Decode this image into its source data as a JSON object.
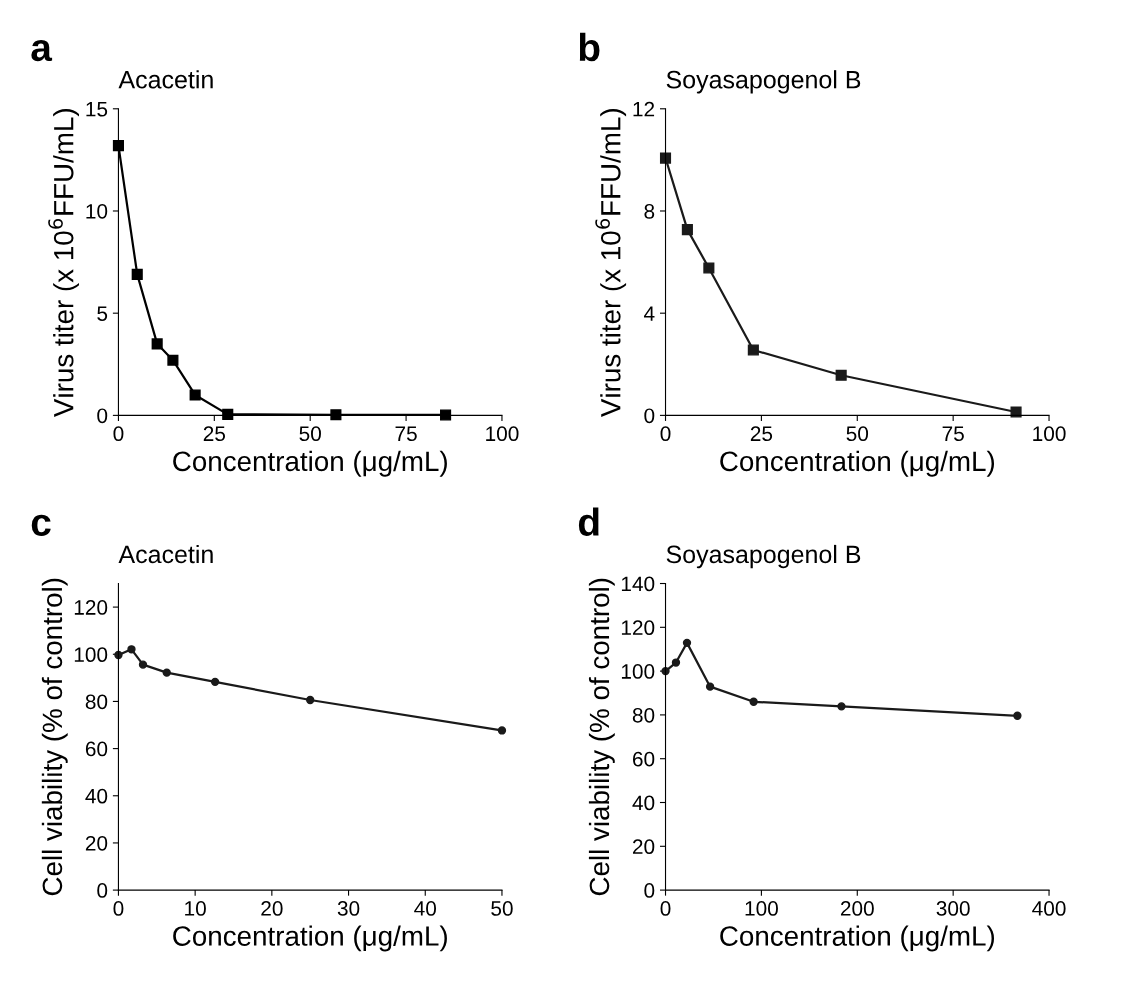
{
  "chart_data": [
    {
      "type": "line",
      "title": "Acacetin",
      "annotations": [
        "a"
      ],
      "xlabel": "Concentration (μg/mL)",
      "ylabel": "Virus titer (x 10$^{6}$FFU/mL)",
      "marker": "square",
      "line_style": "solid",
      "grid": false,
      "x": [
        0,
        4.9,
        10.1,
        14.2,
        20,
        28.5,
        56.7,
        85.3
      ],
      "series": [
        {
          "color": "#000000",
          "values": [
            13.2,
            6.9,
            3.5,
            2.7,
            1.0,
            0.05,
            0.03,
            0.02
          ]
        }
      ],
      "xlim": [
        0,
        100
      ],
      "xticks": [
        0,
        25,
        50,
        75,
        100
      ],
      "ylim": [
        0,
        15
      ],
      "yticks": [
        0,
        5,
        10,
        15
      ]
    },
    {
      "type": "line",
      "title": "Soyasapogenol B",
      "annotations": [
        "b"
      ],
      "xlabel": "Concentration (μg/mL)",
      "ylabel": "Virus titer (x 10$^{6}$FFU/mL)",
      "marker": "square",
      "line_style": "solid",
      "grid": false,
      "x": [
        0,
        5.7,
        11.3,
        22.9,
        45.8,
        91.4
      ],
      "series": [
        {
          "color": "#1a1a1a",
          "values": [
            10.07,
            7.27,
            5.77,
            2.56,
            1.57,
            0.13
          ]
        }
      ],
      "xlim": [
        0,
        100
      ],
      "xticks": [
        0,
        25,
        50,
        75,
        100
      ],
      "ylim": [
        0,
        12
      ],
      "yticks": [
        0,
        4,
        8,
        12
      ]
    },
    {
      "type": "line",
      "title": "Acacetin",
      "annotations": [
        "c"
      ],
      "xlabel": "Concentration (μg/mL)",
      "ylabel": "Cell viability (% of control)",
      "marker": "circle",
      "line_style": "solid",
      "grid": false,
      "x": [
        0,
        1.7,
        3.2,
        6.3,
        12.6,
        25,
        50
      ],
      "series": [
        {
          "color": "#1a1a1a",
          "values": [
            99.7,
            102.1,
            95.6,
            92.2,
            88.3,
            80.6,
            67.7
          ]
        }
      ],
      "xlim": [
        0,
        50
      ],
      "xticks": [
        0,
        10,
        20,
        30,
        40,
        50
      ],
      "ylim": [
        0,
        130
      ],
      "yticks": [
        0,
        20,
        40,
        60,
        80,
        100,
        120
      ]
    },
    {
      "type": "line",
      "title": "Soyasapogenol B",
      "annotations": [
        "d"
      ],
      "xlabel": "Concentration (μg/mL)",
      "ylabel": "Cell viability (% of control)",
      "marker": "circle",
      "line_style": "solid",
      "grid": false,
      "x": [
        0,
        10.9,
        22.4,
        46.5,
        91.9,
        183.5,
        367
      ],
      "series": [
        {
          "color": "#1a1a1a",
          "values": [
            100,
            103.9,
            112.9,
            92.9,
            86.0,
            83.9,
            79.6
          ]
        }
      ],
      "xlim": [
        0,
        400
      ],
      "xticks": [
        0,
        100,
        200,
        300,
        400
      ],
      "ylim": [
        0,
        140
      ],
      "yticks": [
        0,
        20,
        40,
        60,
        80,
        100,
        120,
        140
      ]
    }
  ]
}
